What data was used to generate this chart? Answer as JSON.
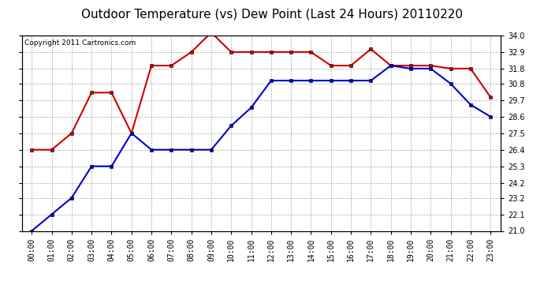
{
  "title": "Outdoor Temperature (vs) Dew Point (Last 24 Hours) 20110220",
  "copyright": "Copyright 2011 Cartronics.com",
  "hours": [
    "00:00",
    "01:00",
    "02:00",
    "03:00",
    "04:00",
    "05:00",
    "06:00",
    "07:00",
    "08:00",
    "09:00",
    "10:00",
    "11:00",
    "12:00",
    "13:00",
    "14:00",
    "15:00",
    "16:00",
    "17:00",
    "18:00",
    "19:00",
    "20:00",
    "21:00",
    "22:00",
    "23:00"
  ],
  "temp": [
    26.4,
    26.4,
    27.5,
    30.2,
    30.2,
    27.5,
    32.0,
    32.0,
    32.9,
    34.2,
    32.9,
    32.9,
    32.9,
    32.9,
    32.9,
    32.0,
    32.0,
    33.1,
    32.0,
    32.0,
    32.0,
    31.8,
    31.8,
    29.9
  ],
  "dew": [
    21.0,
    22.1,
    23.2,
    25.3,
    25.3,
    27.5,
    26.4,
    26.4,
    26.4,
    26.4,
    28.0,
    29.2,
    31.0,
    31.0,
    31.0,
    31.0,
    31.0,
    31.0,
    32.0,
    31.8,
    31.8,
    30.8,
    29.4,
    28.6
  ],
  "temp_color": "#cc0000",
  "dew_color": "#0000cc",
  "bg_color": "#ffffff",
  "grid_color": "#aaaaaa",
  "ymin": 21.0,
  "ymax": 34.0,
  "yticks": [
    21.0,
    22.1,
    23.2,
    24.2,
    25.3,
    26.4,
    27.5,
    28.6,
    29.7,
    30.8,
    31.8,
    32.9,
    34.0
  ],
  "title_fontsize": 11,
  "copyright_fontsize": 6.5,
  "tick_fontsize": 7,
  "marker": "s",
  "linewidth": 1.5,
  "markersize": 3.5
}
